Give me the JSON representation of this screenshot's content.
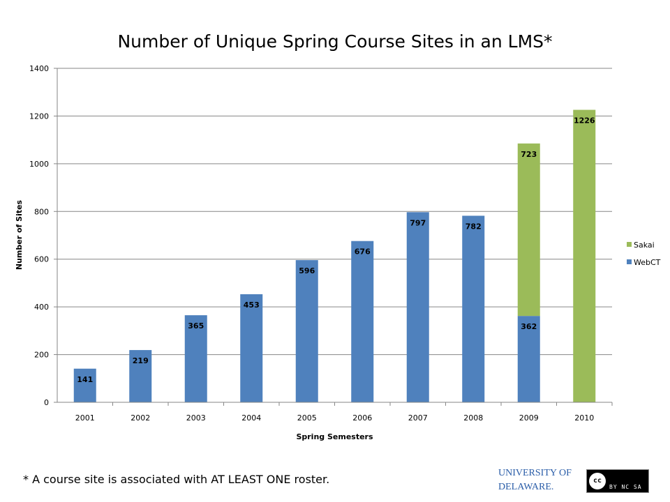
{
  "chart_data": {
    "type": "bar",
    "stacked": true,
    "title": "Number of Unique Spring Course Sites in an LMS*",
    "xlabel": "Spring Semesters",
    "ylabel": "Number of Sites",
    "ylim": [
      0,
      1400
    ],
    "yticks": [
      "0",
      "200",
      "400",
      "600",
      "800",
      "1000",
      "1200",
      "1400"
    ],
    "categories": [
      "2001",
      "2002",
      "2003",
      "2004",
      "2005",
      "2006",
      "2007",
      "2008",
      "2009",
      "2010"
    ],
    "series": [
      {
        "name": "WebCT",
        "color": "#4f81bd",
        "values": [
          141,
          219,
          365,
          453,
          596,
          676,
          797,
          782,
          362,
          0
        ]
      },
      {
        "name": "Sakai",
        "color": "#9bbb59",
        "values": [
          0,
          0,
          0,
          0,
          0,
          0,
          0,
          0,
          723,
          1226
        ]
      }
    ],
    "legend_position": "right",
    "grid": true
  },
  "footnote": "* A course site is associated with AT LEAST ONE roster.",
  "logos": {
    "university": "UNIVERSITY OF DELAWARE.",
    "license": "cc BY NC SA"
  }
}
